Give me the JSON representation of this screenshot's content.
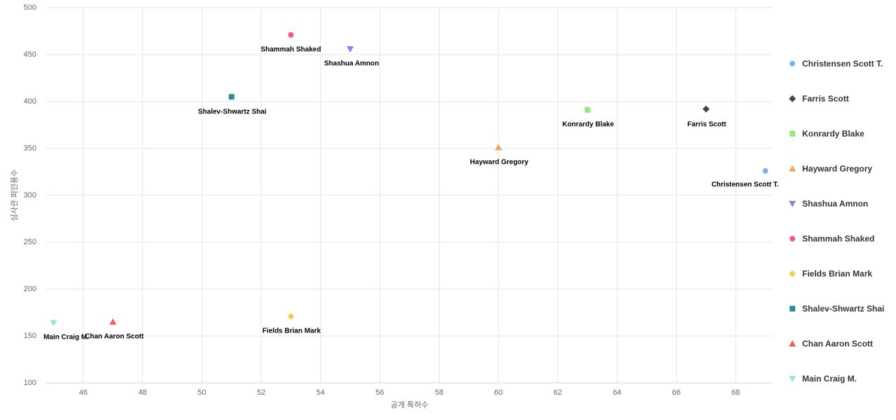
{
  "chart_data": {
    "type": "scatter",
    "title": "",
    "xlabel": "공개 특허수",
    "ylabel": "심사관 피인용수",
    "xlim": [
      44.75,
      69.25
    ],
    "ylim": [
      100,
      500
    ],
    "x_ticks": [
      46,
      48,
      50,
      52,
      54,
      56,
      58,
      60,
      62,
      64,
      66,
      68
    ],
    "y_ticks": [
      100,
      150,
      200,
      250,
      300,
      350,
      400,
      450,
      500
    ],
    "grid": true,
    "legend_position": "right",
    "colors": {
      "background": "#ffffff",
      "grid": "#e6e6e6",
      "axis_line": "#ccd6eb",
      "tick_label": "#666666",
      "axis_title": "#666666",
      "data_label": "#000000",
      "legend_text": "#333333"
    },
    "series": [
      {
        "name": "Christensen Scott T.",
        "symbol": "circle",
        "color": "#7cb5ec",
        "x": 69,
        "y": 326,
        "label_dx": -29,
        "label_dy": 20
      },
      {
        "name": "Farris Scott",
        "symbol": "diamond",
        "color": "#434348",
        "x": 67,
        "y": 392,
        "label_dx": 1,
        "label_dy": 22
      },
      {
        "name": "Konrardy Blake",
        "symbol": "square",
        "color": "#90ed7d",
        "x": 63,
        "y": 391,
        "label_dx": 1,
        "label_dy": 21
      },
      {
        "name": "Hayward Gregory",
        "symbol": "triangle",
        "color": "#f7a35c",
        "x": 60,
        "y": 351,
        "label_dx": 1,
        "label_dy": 21
      },
      {
        "name": "Shashua Amnon",
        "symbol": "triangle-down",
        "color": "#8085e9",
        "x": 55,
        "y": 456,
        "label_dx": 2,
        "label_dy": 21
      },
      {
        "name": "Shammah Shaked",
        "symbol": "circle",
        "color": "#f15c80",
        "x": 53,
        "y": 471,
        "label_dx": 0,
        "label_dy": 21
      },
      {
        "name": "Fields Brian Mark",
        "symbol": "diamond",
        "color": "#e4d354",
        "x": 53,
        "y": 171,
        "label_dx": 1,
        "label_dy": 21
      },
      {
        "name": "Shalev-Shwartz Shai",
        "symbol": "square",
        "color": "#2b908f",
        "x": 51,
        "y": 405,
        "label_dx": 1,
        "label_dy": 22
      },
      {
        "name": "Chan Aaron Scott",
        "symbol": "triangle",
        "color": "#f45b5b",
        "x": 47,
        "y": 165,
        "label_dx": 2,
        "label_dy": 21
      },
      {
        "name": "Main Craig M.",
        "symbol": "triangle-down",
        "color": "#91e8e1",
        "x": 45,
        "y": 164,
        "label_dx": 18,
        "label_dy": 21
      }
    ]
  }
}
